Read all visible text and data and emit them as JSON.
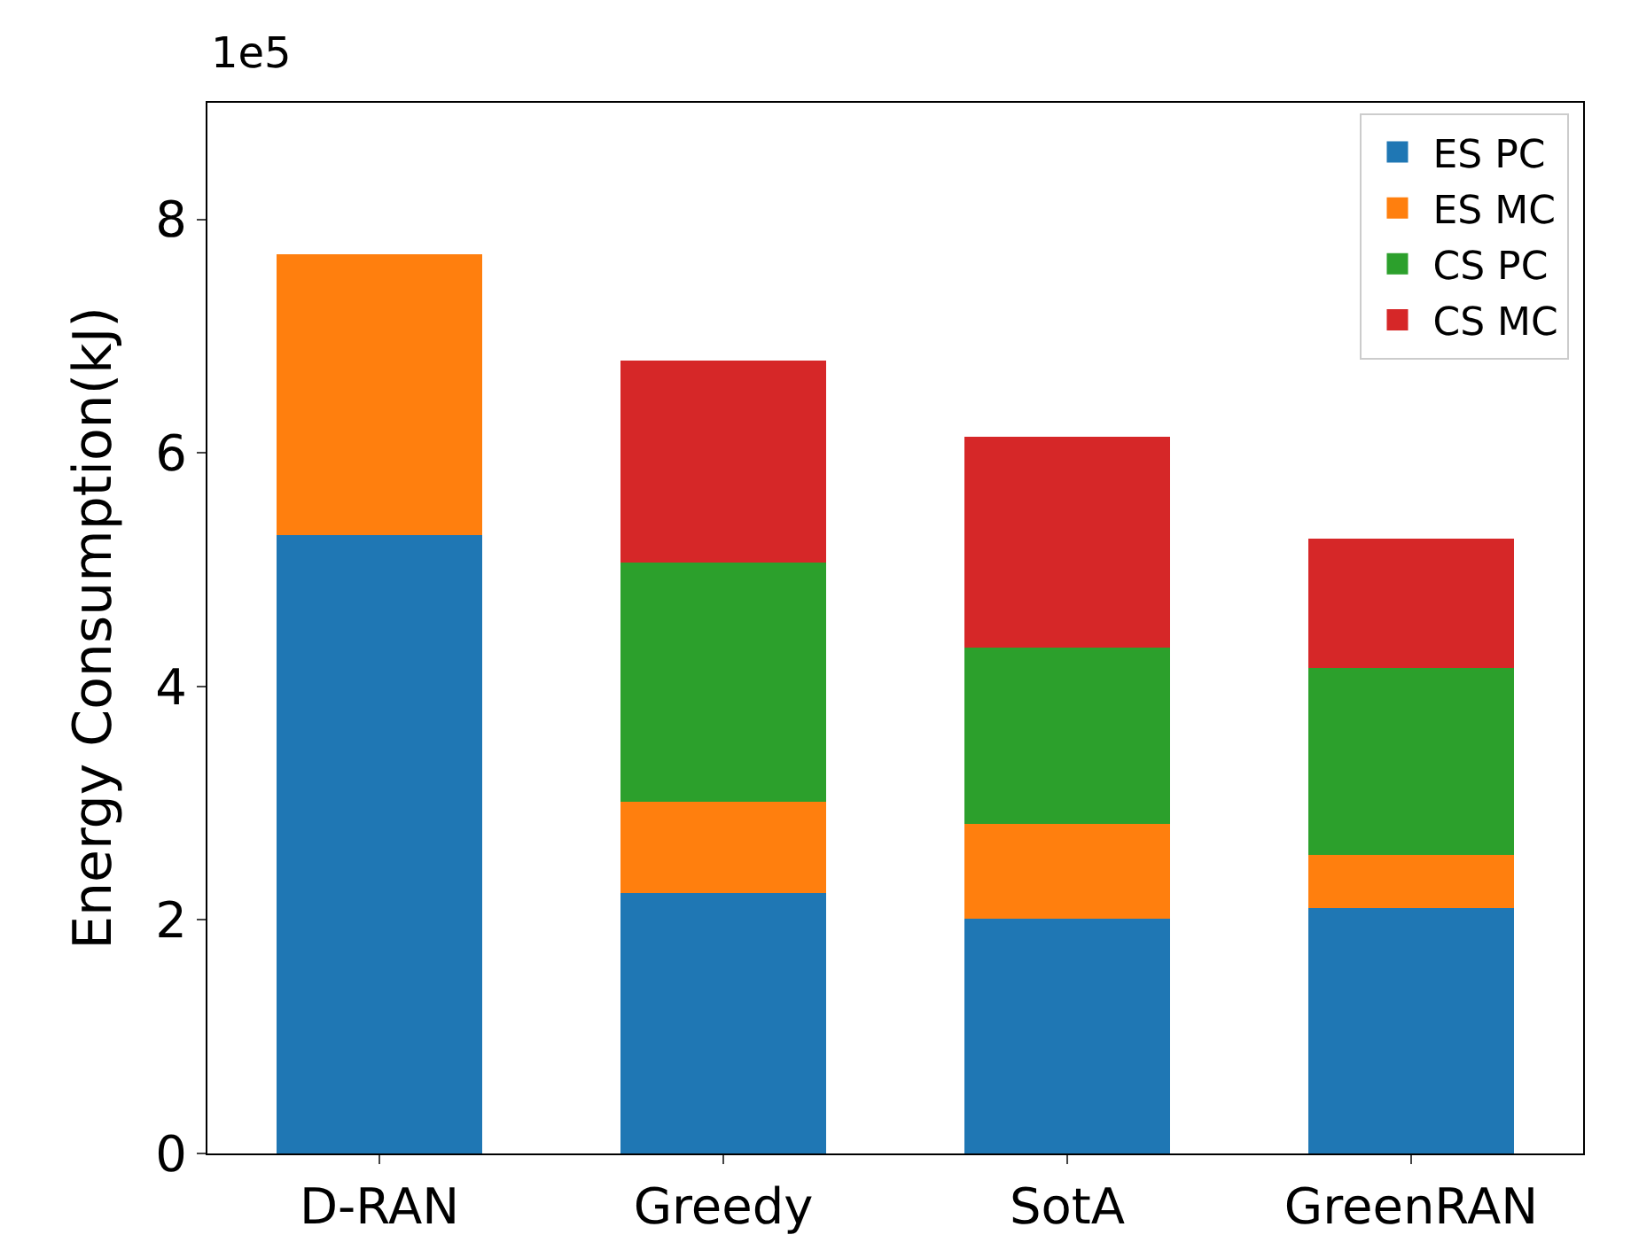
{
  "chart_data": {
    "type": "bar",
    "stacked": true,
    "ylabel": "Energy Consumption(kJ)",
    "categories": [
      "D-RAN",
      "Greedy",
      "SotA",
      "GreenRAN"
    ],
    "series": [
      {
        "name": "ES PC",
        "color": "#1f77b4",
        "values": [
          5.3,
          2.23,
          2.01,
          2.1
        ]
      },
      {
        "name": "ES MC",
        "color": "#ff7f0e",
        "values": [
          2.4,
          0.78,
          0.81,
          0.46
        ]
      },
      {
        "name": "CS PC",
        "color": "#2ca02c",
        "values": [
          null,
          2.05,
          1.51,
          1.6
        ]
      },
      {
        "name": "CS MC",
        "color": "#d62728",
        "values": [
          null,
          1.73,
          1.81,
          1.11
        ]
      }
    ],
    "ylim": [
      0,
      9
    ],
    "yticks": [
      0,
      2,
      4,
      6,
      8
    ],
    "legend": "top right",
    "annotations": [
      "1e5"
    ]
  }
}
